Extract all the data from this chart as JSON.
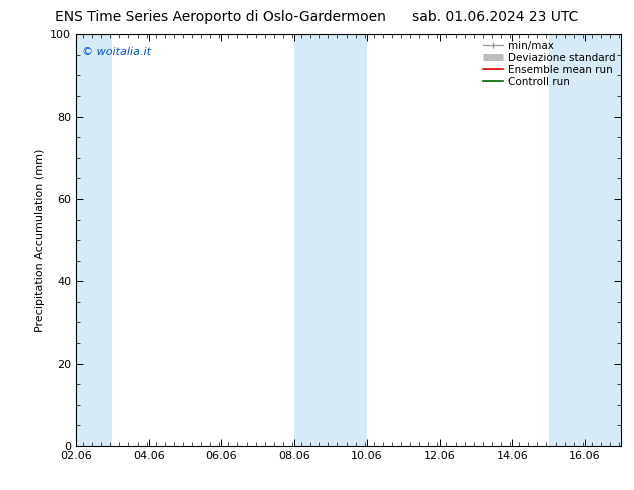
{
  "title_left": "ENS Time Series Aeroporto di Oslo-Gardermoen",
  "title_right": "sab. 01.06.2024 23 UTC",
  "ylabel": "Precipitation Accumulation (mm)",
  "watermark": "© woitalia.it",
  "watermark_color": "#0055cc",
  "ylim": [
    0,
    100
  ],
  "xlim_start": 2.06,
  "xlim_end": 17.06,
  "xticks": [
    2.06,
    4.06,
    6.06,
    8.06,
    10.06,
    12.06,
    14.06,
    16.06
  ],
  "xticklabels": [
    "02.06",
    "04.06",
    "06.06",
    "08.06",
    "10.06",
    "12.06",
    "14.06",
    "16.06"
  ],
  "yticks": [
    0,
    20,
    40,
    60,
    80,
    100
  ],
  "background_color": "#ffffff",
  "plot_bg_color": "#ffffff",
  "shaded_bands": [
    {
      "x_start": 2.06,
      "x_end": 3.06
    },
    {
      "x_start": 8.06,
      "x_end": 10.06
    },
    {
      "x_start": 15.06,
      "x_end": 17.2
    }
  ],
  "band_color": "#d6eaf8",
  "legend_items": [
    {
      "label": "min/max",
      "color": "#999999",
      "lw": 1.0
    },
    {
      "label": "Deviazione standard",
      "color": "#bbbbbb",
      "lw": 5
    },
    {
      "label": "Ensemble mean run",
      "color": "#dd0000",
      "lw": 1.2
    },
    {
      "label": "Controll run",
      "color": "#006600",
      "lw": 1.2
    }
  ],
  "title_fontsize": 10,
  "tick_fontsize": 8,
  "legend_fontsize": 7.5,
  "ylabel_fontsize": 8,
  "watermark_fontsize": 8,
  "title_color": "#000000"
}
